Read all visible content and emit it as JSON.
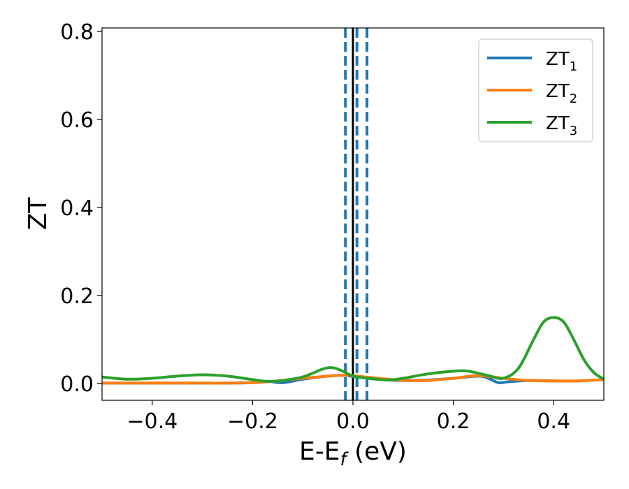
{
  "chart_data": {
    "type": "line",
    "xlabel": "E-E",
    "xlabel_sub": "f",
    "xlabel_unit": " (eV)",
    "ylabel": "ZT",
    "xlim": [
      -0.5,
      0.5
    ],
    "ylim": [
      -0.038,
      0.808
    ],
    "x_ticks": [
      -0.4,
      -0.2,
      0.0,
      0.2,
      0.4
    ],
    "x_tick_labels": [
      "−0.4",
      "−0.2",
      "0.0",
      "0.2",
      "0.4"
    ],
    "y_ticks": [
      0.0,
      0.2,
      0.4,
      0.6,
      0.8
    ],
    "y_tick_labels": [
      "0.0",
      "0.2",
      "0.4",
      "0.6",
      "0.8"
    ],
    "grid": false,
    "legend_position": "top-right",
    "vertical_lines": [
      {
        "x": -0.015,
        "style": "dashed",
        "color": "#1f77b4"
      },
      {
        "x": 0.0,
        "style": "solid",
        "color": "#000000"
      },
      {
        "x": 0.008,
        "style": "dashed",
        "color": "#1f77b4"
      },
      {
        "x": 0.028,
        "style": "dashed",
        "color": "#1f77b4"
      }
    ],
    "series": [
      {
        "name": "ZT",
        "name_sub": "1",
        "color": "#1f77b4",
        "x": [
          -0.5,
          -0.45,
          -0.4,
          -0.35,
          -0.3,
          -0.25,
          -0.2,
          -0.17,
          -0.14,
          -0.1,
          -0.05,
          -0.02,
          0.0,
          0.03,
          0.07,
          0.1,
          0.15,
          0.2,
          0.25,
          0.27,
          0.29,
          0.31,
          0.35,
          0.4,
          0.45,
          0.5
        ],
        "y": [
          0.001,
          0.001,
          0.001,
          0.001,
          0.001,
          0.001,
          0.002,
          0.005,
          0.002,
          0.01,
          0.017,
          0.019,
          0.016,
          0.012,
          0.008,
          0.007,
          0.008,
          0.012,
          0.017,
          0.012,
          0.002,
          0.004,
          0.007,
          0.006,
          0.006,
          0.009
        ]
      },
      {
        "name": "ZT",
        "name_sub": "2",
        "color": "#ff7f0e",
        "x": [
          -0.5,
          -0.45,
          -0.4,
          -0.35,
          -0.3,
          -0.25,
          -0.2,
          -0.15,
          -0.1,
          -0.05,
          -0.02,
          0.0,
          0.05,
          0.1,
          0.15,
          0.2,
          0.25,
          0.3,
          0.35,
          0.4,
          0.45,
          0.5
        ],
        "y": [
          0.001,
          0.001,
          0.001,
          0.001,
          0.001,
          0.001,
          0.002,
          0.006,
          0.012,
          0.017,
          0.019,
          0.018,
          0.012,
          0.007,
          0.007,
          0.012,
          0.018,
          0.012,
          0.007,
          0.006,
          0.006,
          0.009
        ]
      },
      {
        "name": "ZT",
        "name_sub": "3",
        "color": "#2ca02c",
        "x": [
          -0.5,
          -0.45,
          -0.4,
          -0.35,
          -0.3,
          -0.25,
          -0.2,
          -0.17,
          -0.14,
          -0.1,
          -0.06,
          -0.04,
          -0.02,
          0.0,
          0.03,
          0.07,
          0.1,
          0.15,
          0.2,
          0.23,
          0.27,
          0.3,
          0.33,
          0.36,
          0.38,
          0.4,
          0.42,
          0.44,
          0.46,
          0.48,
          0.5
        ],
        "y": [
          0.015,
          0.01,
          0.012,
          0.017,
          0.02,
          0.017,
          0.009,
          0.005,
          0.007,
          0.015,
          0.033,
          0.036,
          0.028,
          0.017,
          0.012,
          0.008,
          0.012,
          0.022,
          0.028,
          0.028,
          0.018,
          0.012,
          0.035,
          0.1,
          0.14,
          0.15,
          0.14,
          0.1,
          0.055,
          0.025,
          0.01
        ]
      }
    ]
  }
}
